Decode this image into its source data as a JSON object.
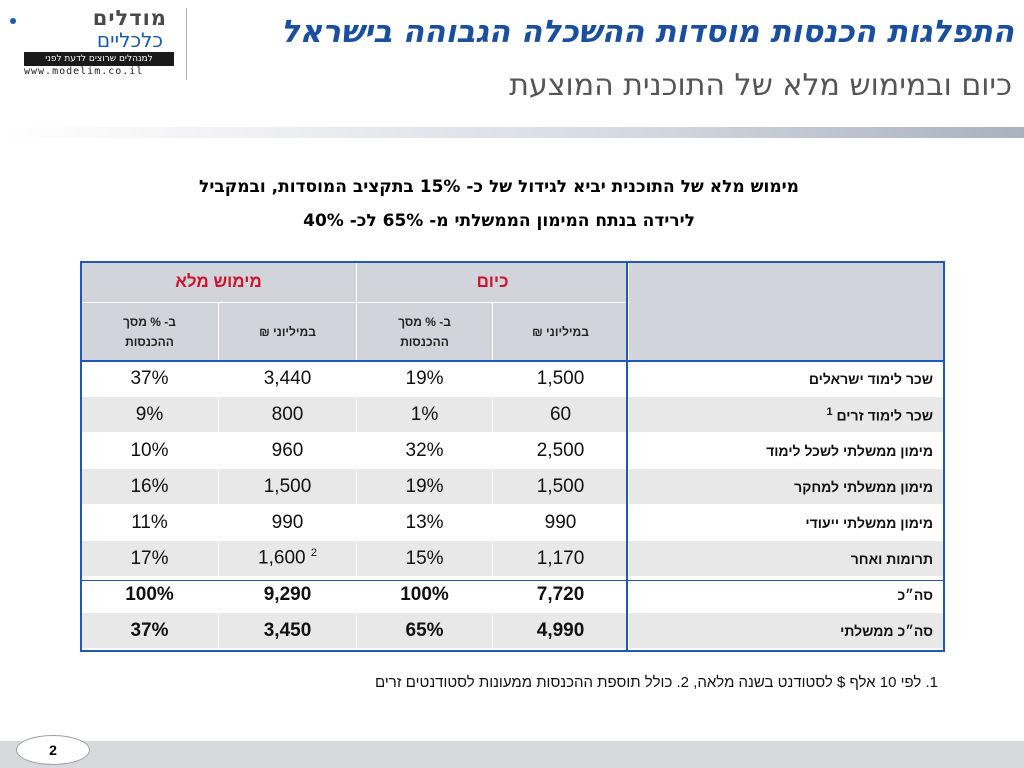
{
  "logo": {
    "line1": "מודלים",
    "line2": "כלכליים",
    "tagline": "למנהלים שרוצים לדעת לפני",
    "url": "www.modelim.co.il"
  },
  "header": {
    "title": "התפלגות הכנסות מוסדות ההשכלה הגבוהה בישראל",
    "subtitle": "כיום ובמימוש מלא של התוכנית המוצעת"
  },
  "intro": {
    "line1": "מימוש מלא של התוכנית יביא לגידול של כ- 15% בתקציב המוסדות, ובמקביל",
    "line2": "לירידה בנתח המימון הממשלתי מ- 65% לכ- 40%"
  },
  "table": {
    "group_today": "כיום",
    "group_full": "מימוש מלא",
    "col_millions": "במיליוני ₪",
    "col_percent_line1": "ב- % מסך",
    "col_percent_line2": "ההכנסות",
    "rows": [
      {
        "label": "שכר לימוד ישראלים",
        "label_sup": "",
        "today_m": "1,500",
        "today_p": "19%",
        "full_m": "3,440",
        "full_m_sup": "",
        "full_p": "37%"
      },
      {
        "label": "שכר לימוד זרים",
        "label_sup": "1",
        "today_m": "60",
        "today_p": "1%",
        "full_m": "800",
        "full_m_sup": "",
        "full_p": "9%"
      },
      {
        "label": "מימון ממשלתי לשכל לימוד",
        "label_sup": "",
        "today_m": "2,500",
        "today_p": "32%",
        "full_m": "960",
        "full_m_sup": "",
        "full_p": "10%"
      },
      {
        "label": "מימון ממשלתי למחקר",
        "label_sup": "",
        "today_m": "1,500",
        "today_p": "19%",
        "full_m": "1,500",
        "full_m_sup": "",
        "full_p": "16%"
      },
      {
        "label": "מימון ממשלתי ייעודי",
        "label_sup": "",
        "today_m": "990",
        "today_p": "13%",
        "full_m": "990",
        "full_m_sup": "",
        "full_p": "11%"
      },
      {
        "label": "תרומות ואחר",
        "label_sup": "",
        "today_m": "1,170",
        "today_p": "15%",
        "full_m": "1,600",
        "full_m_sup": "2",
        "full_p": "17%"
      }
    ],
    "totals": [
      {
        "label": "סה״כ",
        "today_m": "7,720",
        "today_p": "100%",
        "full_m": "9,290",
        "full_p": "100%"
      },
      {
        "label": "סה״כ ממשלתי",
        "today_m": "4,990",
        "today_p": "65%",
        "full_m": "3,450",
        "full_p": "37%"
      }
    ]
  },
  "footnote": "1. לפי 10 אלף $ לסטודנט בשנה מלאה, 2. כולל תוספת ההכנסות ממעונות לסטודנטים זרים",
  "page_number": "2",
  "colors": {
    "title": "#1a4fa0",
    "table_border": "#1f58b8",
    "header_red": "#d0112b",
    "header_gray": "#d1d4da"
  }
}
